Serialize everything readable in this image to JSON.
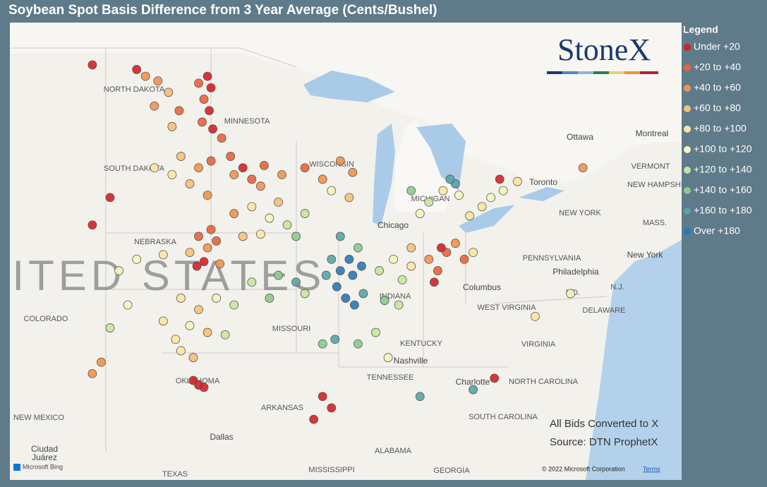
{
  "title": "Soybean Spot Basis Difference from 3 Year Average (Cents/Bushel)",
  "logo": "StoneX",
  "legend": {
    "title": "Legend",
    "items": [
      {
        "label": "Under +20",
        "color": "#d42027"
      },
      {
        "label": "+20 to +40",
        "color": "#e8643c"
      },
      {
        "label": "+40 to +60",
        "color": "#f1924e"
      },
      {
        "label": "+60 to +80",
        "color": "#f6bf78"
      },
      {
        "label": "+80 to +100",
        "color": "#fce6a2"
      },
      {
        "label": "+100 to +120",
        "color": "#f2f6bd"
      },
      {
        "label": "+120 to +140",
        "color": "#c8e49f"
      },
      {
        "label": "+140 to +160",
        "color": "#8bca8e"
      },
      {
        "label": "+160 to +180",
        "color": "#56a4a6"
      },
      {
        "label": "Over +180",
        "color": "#2a78b6"
      }
    ]
  },
  "notes": [
    "All Bids Converted to X",
    "Source: DTN ProphetX"
  ],
  "map": {
    "country": "UNITED STATES",
    "labels": [
      "NORTH DAKOTA",
      "MINNESOTA",
      "SOUTH DAKOTA",
      "NEBRASKA",
      "COLORADO",
      "MISSOURI",
      "KENTUCKY",
      "TENNESSEE",
      "ARKANSAS",
      "NEW MEXICO",
      "OKLAHOMA",
      "TEXAS",
      "MISSISSIPPI",
      "ALABAMA",
      "GEORGIA",
      "SOUTH CAROLINA",
      "NORTH CAROLINA",
      "VIRGINIA",
      "WEST VIRGINIA",
      "PENNSYLVANIA",
      "NEW YORK",
      "VERMONT",
      "NEW HAMPSHIRE",
      "MASS.",
      "N.J.",
      "MD.",
      "DELAWARE",
      "WISCONSIN",
      "MICHIGAN",
      "INDIANA",
      "Chicago",
      "Columbus",
      "Philadelphia",
      "New York",
      "Nashville",
      "Charlotte",
      "Dallas",
      "Ottawa",
      "Montreal",
      "Toronto",
      "Ciudad",
      "Juárez"
    ],
    "points": [
      [
        -97.0,
        48.5,
        0
      ],
      [
        -96.8,
        48.0,
        0
      ],
      [
        -97.2,
        47.5,
        1
      ],
      [
        -96.9,
        47.0,
        0
      ],
      [
        -97.3,
        46.5,
        1
      ],
      [
        -96.7,
        46.2,
        0
      ],
      [
        -97.5,
        48.2,
        1
      ],
      [
        -100.5,
        48.5,
        2
      ],
      [
        -99.8,
        48.3,
        2
      ],
      [
        -99.2,
        47.8,
        3
      ],
      [
        -100.0,
        47.2,
        2
      ],
      [
        -98.6,
        47.0,
        1
      ],
      [
        -101.0,
        48.8,
        0
      ],
      [
        -99.0,
        46.3,
        3
      ],
      [
        -96.2,
        45.8,
        1
      ],
      [
        -95.7,
        45.0,
        1
      ],
      [
        -95.0,
        44.5,
        0
      ],
      [
        -94.5,
        44.0,
        1
      ],
      [
        -95.5,
        44.2,
        2
      ],
      [
        -93.8,
        44.6,
        1
      ],
      [
        -94.0,
        43.7,
        2
      ],
      [
        -92.8,
        44.2,
        2
      ],
      [
        -98.5,
        45.0,
        3
      ],
      [
        -97.5,
        44.5,
        2
      ],
      [
        -98.0,
        43.8,
        3
      ],
      [
        -97.0,
        43.3,
        2
      ],
      [
        -99.0,
        44.2,
        4
      ],
      [
        -96.8,
        44.8,
        1
      ],
      [
        -100.0,
        44.5,
        4
      ],
      [
        -97.5,
        41.5,
        1
      ],
      [
        -96.8,
        41.8,
        1
      ],
      [
        -97.0,
        41.0,
        2
      ],
      [
        -96.5,
        41.3,
        1
      ],
      [
        -98.0,
        40.8,
        3
      ],
      [
        -97.6,
        40.2,
        0
      ],
      [
        -97.2,
        40.4,
        0
      ],
      [
        -96.3,
        40.3,
        2
      ],
      [
        -99.5,
        40.7,
        4
      ],
      [
        -101.0,
        40.5,
        5
      ],
      [
        -98.5,
        38.8,
        4
      ],
      [
        -97.5,
        38.3,
        3
      ],
      [
        -96.5,
        38.8,
        5
      ],
      [
        -95.5,
        38.5,
        6
      ],
      [
        -98.0,
        37.6,
        5
      ],
      [
        -99.5,
        37.8,
        4
      ],
      [
        -97.0,
        37.3,
        3
      ],
      [
        -96.0,
        37.2,
        6
      ],
      [
        -98.8,
        37.0,
        4
      ],
      [
        -97.8,
        35.2,
        0
      ],
      [
        -97.5,
        35.0,
        0
      ],
      [
        -97.2,
        34.9,
        0
      ],
      [
        -98.5,
        36.5,
        4
      ],
      [
        -97.8,
        36.2,
        3
      ],
      [
        -95.5,
        42.5,
        2
      ],
      [
        -94.5,
        42.8,
        4
      ],
      [
        -93.5,
        42.3,
        5
      ],
      [
        -92.5,
        42.0,
        6
      ],
      [
        -94.0,
        41.6,
        4
      ],
      [
        -92.0,
        41.5,
        7
      ],
      [
        -91.5,
        42.5,
        6
      ],
      [
        -93.0,
        43.0,
        3
      ],
      [
        -95.0,
        41.5,
        3
      ],
      [
        -94.5,
        39.5,
        6
      ],
      [
        -93.0,
        39.8,
        7
      ],
      [
        -92.0,
        39.5,
        8
      ],
      [
        -91.5,
        39.0,
        6
      ],
      [
        -93.5,
        38.8,
        7
      ],
      [
        -90.5,
        36.8,
        7
      ],
      [
        -89.8,
        37.0,
        8
      ],
      [
        -90.0,
        40.5,
        8
      ],
      [
        -89.5,
        40.0,
        9
      ],
      [
        -89.0,
        40.5,
        9
      ],
      [
        -88.8,
        39.8,
        9
      ],
      [
        -89.7,
        39.3,
        9
      ],
      [
        -88.3,
        40.2,
        9
      ],
      [
        -89.2,
        38.8,
        9
      ],
      [
        -88.7,
        38.5,
        9
      ],
      [
        -90.3,
        39.8,
        8
      ],
      [
        -88.5,
        41.0,
        7
      ],
      [
        -89.5,
        41.5,
        8
      ],
      [
        -88.2,
        39.0,
        8
      ],
      [
        -87.3,
        40.0,
        6
      ],
      [
        -86.5,
        40.5,
        5
      ],
      [
        -86.0,
        39.6,
        6
      ],
      [
        -85.5,
        40.2,
        4
      ],
      [
        -87.0,
        38.7,
        7
      ],
      [
        -86.2,
        38.5,
        6
      ],
      [
        -85.5,
        41.0,
        3
      ],
      [
        -84.5,
        40.5,
        2
      ],
      [
        -84.0,
        40.0,
        1
      ],
      [
        -83.5,
        40.8,
        1
      ],
      [
        -83.0,
        41.2,
        2
      ],
      [
        -82.5,
        40.5,
        1
      ],
      [
        -84.2,
        39.5,
        0
      ],
      [
        -83.8,
        41.0,
        0
      ],
      [
        -82.0,
        40.8,
        4
      ],
      [
        -85.0,
        42.5,
        5
      ],
      [
        -84.5,
        43.0,
        6
      ],
      [
        -83.7,
        43.5,
        4
      ],
      [
        -83.0,
        43.8,
        8
      ],
      [
        -83.3,
        44.0,
        8
      ],
      [
        -85.5,
        43.5,
        7
      ],
      [
        -82.8,
        43.3,
        5
      ],
      [
        -81.5,
        42.8,
        4
      ],
      [
        -81.0,
        43.2,
        5
      ],
      [
        -80.3,
        43.5,
        5
      ],
      [
        -82.2,
        42.4,
        4
      ],
      [
        -79.5,
        43.9,
        4
      ],
      [
        -80.5,
        44.0,
        0
      ],
      [
        -75.8,
        44.5,
        2
      ],
      [
        -89.5,
        44.8,
        2
      ],
      [
        -88.8,
        44.3,
        2
      ],
      [
        -90.5,
        44.0,
        2
      ],
      [
        -91.5,
        44.5,
        1
      ],
      [
        -89.0,
        43.2,
        3
      ],
      [
        -90.0,
        43.5,
        5
      ],
      [
        -87.5,
        37.3,
        6
      ],
      [
        -88.5,
        36.8,
        7
      ],
      [
        -86.8,
        36.2,
        5
      ],
      [
        -90.5,
        34.5,
        0
      ],
      [
        -90.0,
        34.0,
        0
      ],
      [
        -91.0,
        33.5,
        0
      ],
      [
        -85.0,
        34.5,
        8
      ],
      [
        -82.0,
        34.8,
        8
      ],
      [
        -80.8,
        35.3,
        0
      ],
      [
        -76.5,
        39.0,
        5
      ],
      [
        -78.5,
        38.0,
        4
      ],
      [
        -102.0,
        40.0,
        5
      ],
      [
        -101.5,
        38.5,
        5
      ],
      [
        -102.5,
        37.5,
        6
      ],
      [
        -103.5,
        35.5,
        2
      ],
      [
        -103.0,
        36.0,
        2
      ],
      [
        -103.5,
        49.0,
        0
      ],
      [
        -103.5,
        42.0,
        0
      ],
      [
        -102.5,
        43.2,
        0
      ]
    ]
  },
  "attribution": {
    "bing": "Microsoft Bing",
    "copyright": "© 2022 Microsoft Corporation",
    "terms": "Terms"
  }
}
